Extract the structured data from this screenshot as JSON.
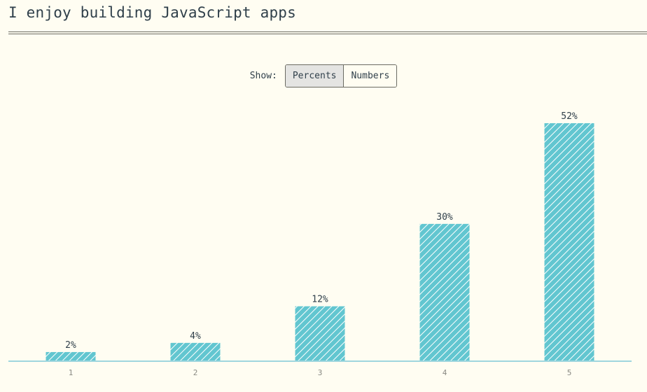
{
  "title": "I enjoy building JavaScript apps",
  "toggle": {
    "label": "Show:",
    "options": [
      "Percents",
      "Numbers"
    ],
    "selected": "Percents"
  },
  "colors": {
    "bar": "#62c6d0",
    "hatch": "#ffffff",
    "axis": "#9fd6de"
  },
  "chart_data": {
    "type": "bar",
    "categories": [
      "1",
      "2",
      "3",
      "4",
      "5"
    ],
    "values": [
      2,
      4,
      12,
      30,
      52
    ],
    "value_labels": [
      "2%",
      "4%",
      "12%",
      "30%",
      "52%"
    ],
    "title": "",
    "xlabel": "",
    "ylabel": "",
    "ylim": [
      0,
      52
    ],
    "grid": false,
    "legend": "none"
  }
}
